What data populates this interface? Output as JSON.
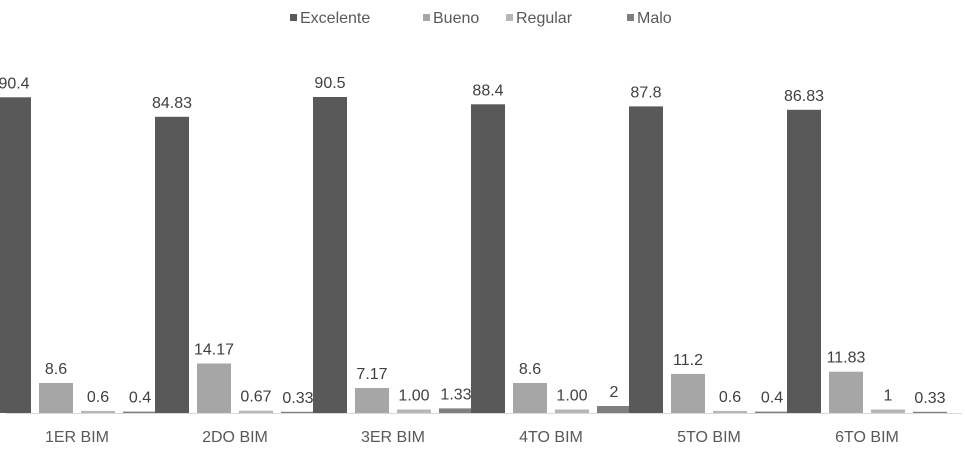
{
  "chart_data": {
    "type": "bar",
    "title": "",
    "xlabel": "",
    "ylabel": "",
    "ylim": [
      0,
      95
    ],
    "grid": false,
    "legend_position": "top",
    "categories": [
      "1ER BIM",
      "2DO BIM",
      "3ER BIM",
      "4TO BIM",
      "5TO BIM",
      "6TO BIM"
    ],
    "series": [
      {
        "name": "Excelente",
        "color": "#595959",
        "values": [
          90.4,
          84.83,
          90.5,
          88.4,
          87.8,
          86.83
        ],
        "labels": [
          "90.4",
          "84.83",
          "90.5",
          "88.4",
          "87.8",
          "86.83"
        ]
      },
      {
        "name": "Bueno",
        "color": "#a6a6a6",
        "values": [
          8.6,
          14.17,
          7.17,
          8.6,
          11.2,
          11.83
        ],
        "labels": [
          "8.6",
          "14.17",
          "7.17",
          "8.6",
          "11.2",
          "11.83"
        ]
      },
      {
        "name": "Regular",
        "color": "#b7b7b7",
        "values": [
          0.6,
          0.67,
          1.0,
          1.0,
          0.6,
          1.0
        ],
        "labels": [
          "0.6",
          "0.67",
          "1.00",
          "1.00",
          "0.6",
          "1"
        ]
      },
      {
        "name": "Malo",
        "color": "#7f7f7f",
        "values": [
          0.4,
          0.33,
          1.33,
          2.0,
          0.4,
          0.33
        ],
        "labels": [
          "0.4",
          "0.33",
          "1.33",
          "2",
          "0.4",
          "0.33"
        ]
      }
    ]
  }
}
